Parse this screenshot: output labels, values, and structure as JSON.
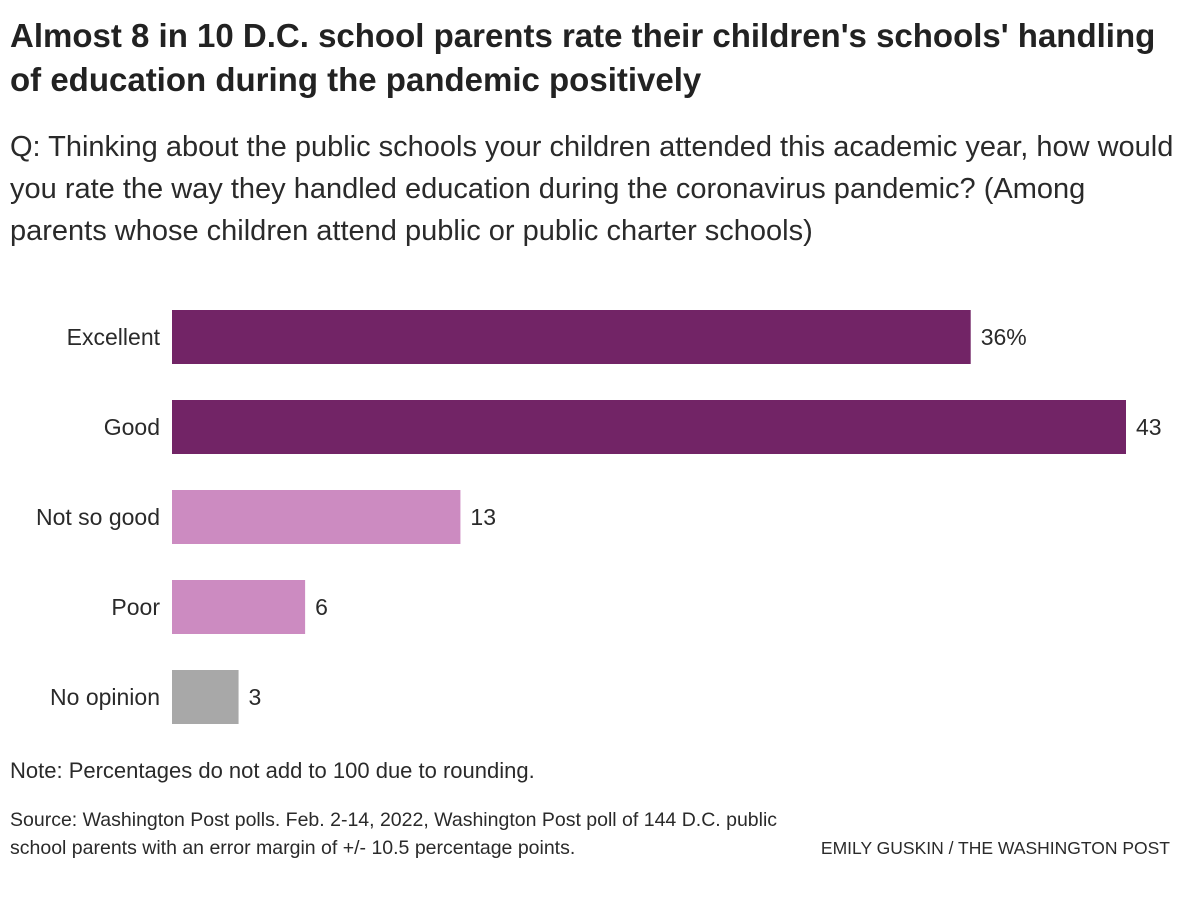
{
  "title": "Almost 8 in 10 D.C. school parents rate their children's schools' handling of education during the pandemic positively",
  "question": "Q: Thinking about the public schools your children attended this academic year, how would you rate the way they handled education during the coronavirus pandemic? (Among parents whose children attend public or public charter schools)",
  "note": "Note: Percentages do not add to 100 due to rounding.",
  "source": "Source: Washington Post polls. Feb. 2-14, 2022, Washington Post poll of 144 D.C. public school parents with an error margin of +/- 10.5 percentage points.",
  "credit": "EMILY GUSKIN / THE WASHINGTON POST",
  "chart_data": {
    "type": "bar",
    "orientation": "horizontal",
    "categories": [
      "Excellent",
      "Good",
      "Not so good",
      "Poor",
      "No opinion"
    ],
    "values": [
      36,
      43,
      13,
      6,
      3
    ],
    "value_labels": [
      "36%",
      "43",
      "13",
      "6",
      "3"
    ],
    "colors": [
      "#722466",
      "#722466",
      "#cc8bc1",
      "#cc8bc1",
      "#a8a8a8"
    ],
    "xlim": [
      0,
      43
    ],
    "unit": "%",
    "grid": false,
    "legend": "none"
  }
}
